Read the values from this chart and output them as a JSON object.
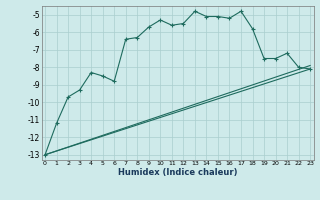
{
  "xlabel": "Humidex (Indice chaleur)",
  "bg_color": "#ceeaea",
  "grid_color": "#aacece",
  "line_color": "#1e6b5e",
  "xlim": [
    -0.3,
    23.3
  ],
  "ylim": [
    -13.3,
    -4.5
  ],
  "yticks": [
    -13,
    -12,
    -11,
    -10,
    -9,
    -8,
    -7,
    -6,
    -5
  ],
  "xticks": [
    0,
    1,
    2,
    3,
    4,
    5,
    6,
    7,
    8,
    9,
    10,
    11,
    12,
    13,
    14,
    15,
    16,
    17,
    18,
    19,
    20,
    21,
    22,
    23
  ],
  "line1_x": [
    0,
    1,
    2,
    3,
    4,
    5,
    6,
    7,
    8,
    9,
    10,
    11,
    12,
    13,
    14,
    15,
    16,
    17,
    18,
    19,
    20,
    21,
    22,
    23
  ],
  "line1_y": [
    -13,
    -11.2,
    -9.7,
    -9.3,
    -8.3,
    -8.5,
    -8.8,
    -6.4,
    -6.3,
    -5.7,
    -5.3,
    -5.6,
    -5.5,
    -4.8,
    -5.1,
    -5.1,
    -5.2,
    -4.8,
    -5.8,
    -7.5,
    -7.5,
    -7.2,
    -8.0,
    -8.1
  ],
  "line2_x": [
    0,
    23
  ],
  "line2_y": [
    -13,
    -7.9
  ],
  "line3_x": [
    0,
    23
  ],
  "line3_y": [
    -13,
    -8.1
  ]
}
